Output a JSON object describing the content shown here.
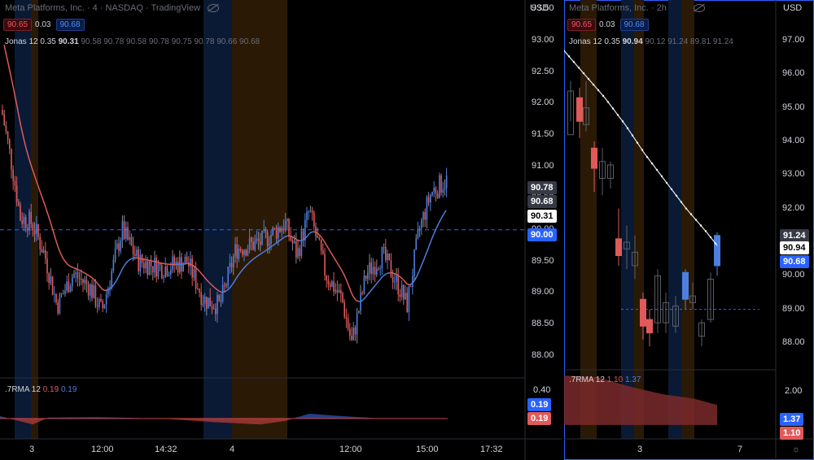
{
  "left": {
    "title": "Meta Platforms, Inc. · 4 · NASDAQ · TradingView",
    "bid": "90.65",
    "spread": "0.03",
    "ask": "90.68",
    "indicator": "Jonas 12 0.35",
    "indicator_current": "90.31",
    "indicator_values": "90.58 90.78 90.58 90.78 90.75 90.78 90.66 90.68",
    "currency": "USD",
    "price_ticks": [
      "93.50",
      "93.00",
      "92.50",
      "92.00",
      "91.50",
      "91.00",
      "90.50",
      "90.00",
      "89.50",
      "89.00",
      "88.50",
      "88.00"
    ],
    "tags": {
      "high": "90.78",
      "ask": "90.68",
      "indicator": "90.31",
      "line": "90.00"
    },
    "osc_label": ".7RMA 12",
    "osc_val_red": "0.19",
    "osc_val_blue": "0.19",
    "osc_tick": "0.40",
    "osc_tags": {
      "blue": "0.19",
      "red": "0.19"
    },
    "time_labels": [
      "3",
      "12:00",
      "14:32",
      "4",
      "12:00",
      "15:00",
      "17:32"
    ]
  },
  "right": {
    "title": "Meta Platforms, Inc. · 2h",
    "bid": "90.65",
    "spread": "0.03",
    "ask": "90.68",
    "indicator": "Jonas 12 0.35",
    "indicator_current": "90.94",
    "indicator_values": "90.12 91.24 89.81 91.24",
    "currency": "USD",
    "price_ticks": [
      "97.00",
      "96.00",
      "95.00",
      "94.00",
      "93.00",
      "92.00",
      "91.00",
      "90.00",
      "89.00",
      "88.00"
    ],
    "tags": {
      "high": "91.24",
      "indicator": "90.94",
      "ask": "90.68"
    },
    "osc_label": ".7RMA 12",
    "osc_val_red": "1.10",
    "osc_val_blue": "1.37",
    "osc_tick": "2.00",
    "osc_tags": {
      "blue": "1.37",
      "red": "1.10"
    },
    "time_labels": [
      "3",
      "7"
    ]
  },
  "colors": {
    "up": "#4d7fe0",
    "down": "#e05a5a",
    "neutral": "#8a8d96",
    "accent": "#2962ff",
    "session_blue": "#0a1a35",
    "session_orange": "#2a1a05"
  }
}
